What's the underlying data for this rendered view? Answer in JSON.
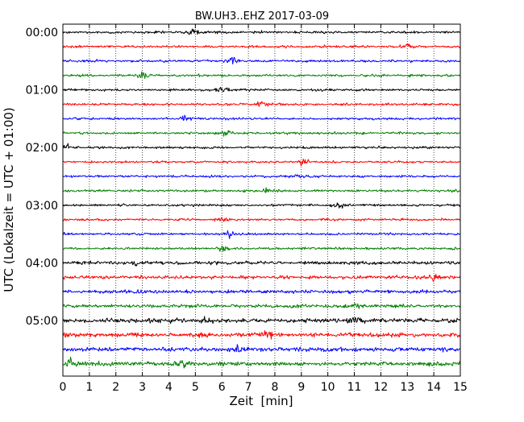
{
  "chart_data": {
    "type": "line",
    "chart_kind": "seismogram dayplot",
    "title": "BW.UH3..EHZ 2017-03-09",
    "xlabel": "Zeit  [min]",
    "ylabel": "UTC (Lokalzeit = UTC + 01:00)",
    "xlim": [
      0,
      15
    ],
    "x_ticks": [
      "0",
      "1",
      "2",
      "3",
      "4",
      "5",
      "6",
      "7",
      "8",
      "9",
      "10",
      "11",
      "12",
      "13",
      "14",
      "15"
    ],
    "y_tick_labels": [
      "00:00",
      "01:00",
      "02:00",
      "03:00",
      "04:00",
      "05:00"
    ],
    "y_tick_trace_index": [
      0,
      4,
      8,
      12,
      16,
      20
    ],
    "trace_interval_minutes": 15,
    "trace_count": 24,
    "trace_colors": [
      "#000000",
      "#ff0000",
      "#0000ff",
      "#008000"
    ],
    "grid": {
      "vertical_dotted": true,
      "horizontal": false
    },
    "traces": [
      {
        "start": "00:00",
        "color": "#000000",
        "events_min": [
          4.9
        ]
      },
      {
        "start": "00:15",
        "color": "#ff0000",
        "events_min": [
          13.0
        ]
      },
      {
        "start": "00:30",
        "color": "#0000ff",
        "events_min": [
          6.4
        ]
      },
      {
        "start": "00:45",
        "color": "#008000",
        "events_min": [
          3.0
        ]
      },
      {
        "start": "01:00",
        "color": "#000000",
        "events_min": [
          6.0
        ]
      },
      {
        "start": "01:15",
        "color": "#ff0000",
        "events_min": [
          7.5
        ]
      },
      {
        "start": "01:30",
        "color": "#0000ff",
        "events_min": [
          4.6
        ]
      },
      {
        "start": "01:45",
        "color": "#008000",
        "events_min": [
          6.1
        ]
      },
      {
        "start": "02:00",
        "color": "#000000",
        "events_min": [
          0.2
        ]
      },
      {
        "start": "02:15",
        "color": "#ff0000",
        "events_min": [
          9.0
        ]
      },
      {
        "start": "02:30",
        "color": "#0000ff",
        "events_min": [
          9.2
        ]
      },
      {
        "start": "02:45",
        "color": "#008000",
        "events_min": [
          7.7
        ]
      },
      {
        "start": "03:00",
        "color": "#000000",
        "events_min": [
          10.5
        ]
      },
      {
        "start": "03:15",
        "color": "#ff0000",
        "events_min": [
          6.0
        ]
      },
      {
        "start": "03:30",
        "color": "#0000ff",
        "events_min": [
          6.3
        ]
      },
      {
        "start": "03:45",
        "color": "#008000",
        "events_min": [
          6.0
        ]
      },
      {
        "start": "04:00",
        "color": "#000000",
        "events_min": [
          2.8
        ]
      },
      {
        "start": "04:15",
        "color": "#ff0000",
        "events_min": [
          14.0
        ]
      },
      {
        "start": "04:30",
        "color": "#0000ff",
        "events_min": [
          3.0
        ]
      },
      {
        "start": "04:45",
        "color": "#008000",
        "events_min": [
          11.0
        ]
      },
      {
        "start": "05:00",
        "color": "#000000",
        "events_min": [
          5.3,
          11.0
        ]
      },
      {
        "start": "05:15",
        "color": "#ff0000",
        "events_min": [
          7.7
        ]
      },
      {
        "start": "05:30",
        "color": "#0000ff",
        "events_min": [
          6.5
        ]
      },
      {
        "start": "05:45",
        "color": "#008000",
        "events_min": [
          0.3,
          4.5
        ]
      }
    ]
  }
}
